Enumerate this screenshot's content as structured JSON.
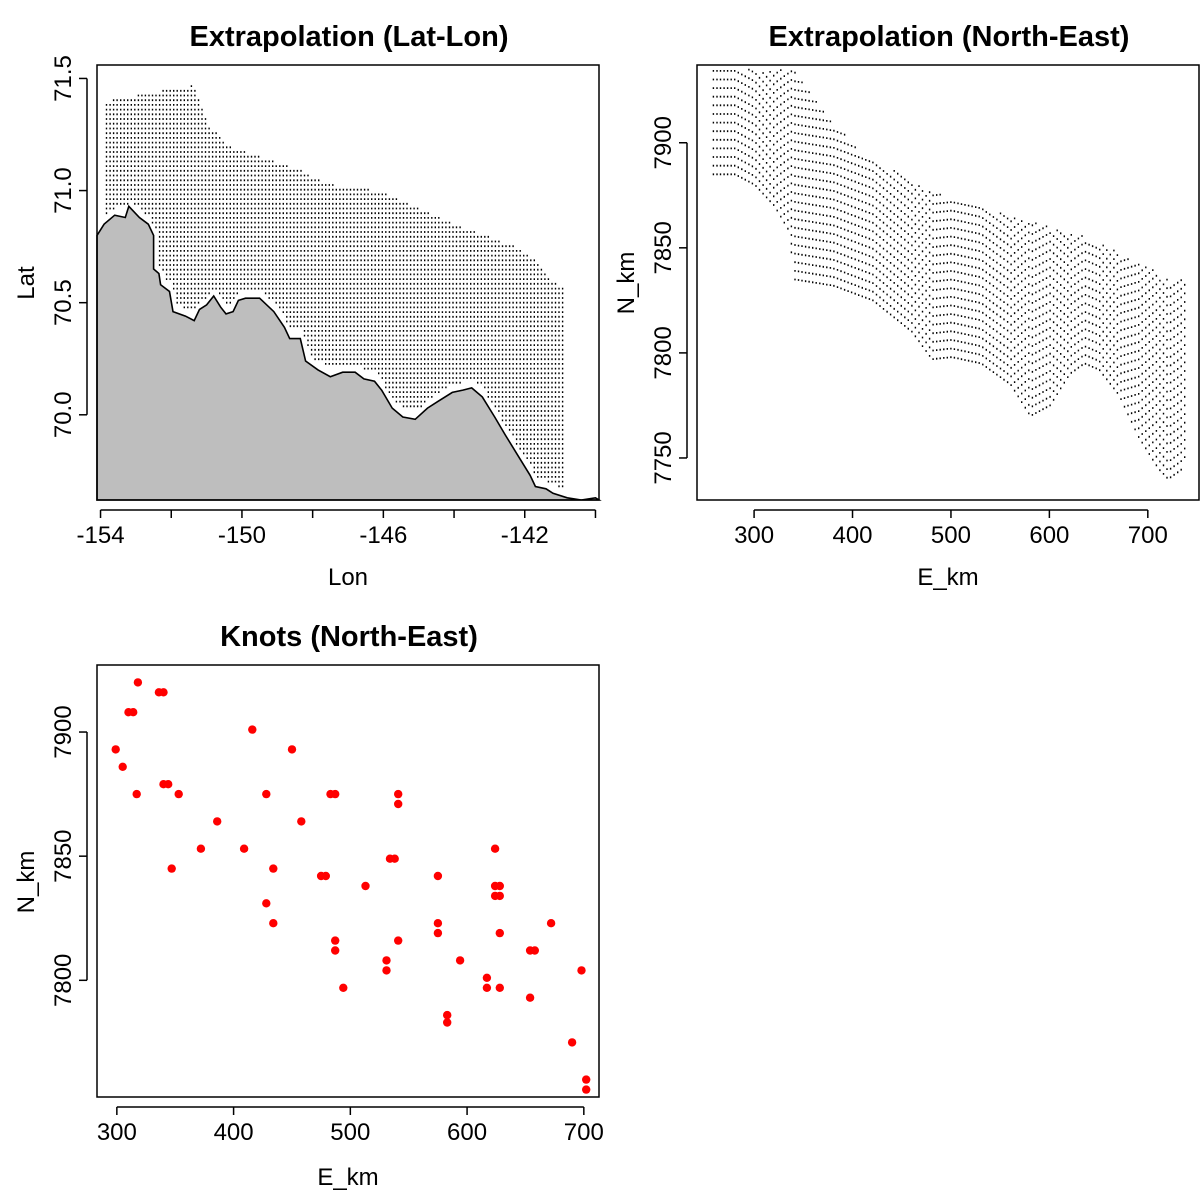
{
  "chart_data": [
    {
      "id": "latlon",
      "type": "scatter",
      "title": "Extrapolation (Lat-Lon)",
      "xlabel": "Lon",
      "ylabel": "Lat",
      "xlim": [
        -154.1,
        -139.9
      ],
      "ylim": [
        69.62,
        71.56
      ],
      "xticks": [
        -154,
        -152,
        -150,
        -148,
        -146,
        -144,
        -142,
        -140
      ],
      "xticklabels": [
        "-154",
        "",
        "-150",
        "",
        "-146",
        "",
        "-142",
        ""
      ],
      "yticks": [
        70.0,
        70.5,
        71.0,
        71.5
      ],
      "yticklabels": [
        "70.0",
        "70.5",
        "71.0",
        "71.5"
      ],
      "grid": false,
      "marker": "small black dots",
      "coastline_fill": "#bebebe",
      "land_polygon": [
        [
          -154.1,
          70.8
        ],
        [
          -153.9,
          70.85
        ],
        [
          -153.6,
          70.89
        ],
        [
          -153.3,
          70.88
        ],
        [
          -153.2,
          70.93
        ],
        [
          -152.9,
          70.88
        ],
        [
          -152.65,
          70.85
        ],
        [
          -152.5,
          70.8
        ],
        [
          -152.5,
          70.65
        ],
        [
          -152.35,
          70.63
        ],
        [
          -152.3,
          70.58
        ],
        [
          -152.05,
          70.55
        ],
        [
          -151.95,
          70.46
        ],
        [
          -151.6,
          70.44
        ],
        [
          -151.35,
          70.42
        ],
        [
          -151.2,
          70.47
        ],
        [
          -151.0,
          70.49
        ],
        [
          -150.8,
          70.53
        ],
        [
          -150.6,
          70.48
        ],
        [
          -150.45,
          70.45
        ],
        [
          -150.25,
          70.46
        ],
        [
          -150.1,
          70.51
        ],
        [
          -149.9,
          70.52
        ],
        [
          -149.5,
          70.52
        ],
        [
          -149.1,
          70.46
        ],
        [
          -148.8,
          70.39
        ],
        [
          -148.65,
          70.34
        ],
        [
          -148.35,
          70.34
        ],
        [
          -148.2,
          70.24
        ],
        [
          -147.85,
          70.2
        ],
        [
          -147.5,
          70.17
        ],
        [
          -147.15,
          70.19
        ],
        [
          -146.8,
          70.19
        ],
        [
          -146.55,
          70.16
        ],
        [
          -146.25,
          70.15
        ],
        [
          -146.05,
          70.11
        ],
        [
          -145.75,
          70.03
        ],
        [
          -145.45,
          69.99
        ],
        [
          -145.1,
          69.98
        ],
        [
          -144.75,
          70.03
        ],
        [
          -144.45,
          70.06
        ],
        [
          -144.05,
          70.1
        ],
        [
          -143.75,
          70.11
        ],
        [
          -143.5,
          70.12
        ],
        [
          -143.2,
          70.08
        ],
        [
          -142.85,
          69.99
        ],
        [
          -142.55,
          69.91
        ],
        [
          -142.2,
          69.82
        ],
        [
          -141.85,
          69.73
        ],
        [
          -141.7,
          69.68
        ],
        [
          -141.4,
          69.67
        ],
        [
          -141.2,
          69.65
        ],
        [
          -140.8,
          69.63
        ],
        [
          -140.4,
          69.62
        ],
        [
          -140.0,
          69.63
        ],
        [
          -139.9,
          69.62
        ],
        [
          -154.1,
          69.62
        ]
      ]
    },
    {
      "id": "ne",
      "type": "scatter",
      "title": "Extrapolation (North-East)",
      "xlabel": "E_km",
      "ylabel": "N_km",
      "xlim": [
        242,
        752
      ],
      "ylim": [
        7730,
        7937
      ],
      "xticks": [
        300,
        400,
        500,
        600,
        700
      ],
      "yticks": [
        7750,
        7800,
        7850,
        7900
      ],
      "grid": false,
      "marker": "small black dots",
      "region_north_boundary": [
        [
          258,
          7935
        ],
        [
          340,
          7935
        ],
        [
          355,
          7925
        ],
        [
          370,
          7915
        ],
        [
          390,
          7905
        ],
        [
          410,
          7895
        ],
        [
          430,
          7890
        ],
        [
          460,
          7882
        ],
        [
          490,
          7875
        ],
        [
          520,
          7870
        ],
        [
          560,
          7866
        ],
        [
          600,
          7860
        ],
        [
          640,
          7855
        ],
        [
          680,
          7845
        ],
        [
          700,
          7842
        ],
        [
          720,
          7835
        ],
        [
          740,
          7835
        ]
      ],
      "region_south_boundary": [
        [
          258,
          7885
        ],
        [
          280,
          7885
        ],
        [
          300,
          7880
        ],
        [
          320,
          7870
        ],
        [
          335,
          7858
        ],
        [
          340,
          7835
        ],
        [
          380,
          7832
        ],
        [
          420,
          7825
        ],
        [
          460,
          7810
        ],
        [
          480,
          7797
        ],
        [
          500,
          7798
        ],
        [
          530,
          7795
        ],
        [
          560,
          7785
        ],
        [
          580,
          7770
        ],
        [
          600,
          7775
        ],
        [
          620,
          7790
        ],
        [
          635,
          7795
        ],
        [
          650,
          7792
        ],
        [
          670,
          7780
        ],
        [
          690,
          7760
        ],
        [
          710,
          7745
        ],
        [
          720,
          7740
        ],
        [
          735,
          7745
        ],
        [
          740,
          7760
        ]
      ]
    },
    {
      "id": "knots",
      "type": "scatter",
      "title": "Knots (North-East)",
      "xlabel": "E_km",
      "ylabel": "N_km",
      "xlim": [
        283,
        713
      ],
      "ylim": [
        7753,
        7927
      ],
      "xticks": [
        300,
        400,
        500,
        600,
        700
      ],
      "yticks": [
        7800,
        7850,
        7900
      ],
      "grid": false,
      "marker_color": "#ff0000",
      "points": [
        [
          299,
          7893
        ],
        [
          305,
          7886
        ],
        [
          310,
          7908
        ],
        [
          314,
          7908
        ],
        [
          317,
          7875
        ],
        [
          318,
          7920
        ],
        [
          336,
          7916
        ],
        [
          340,
          7916
        ],
        [
          340,
          7879
        ],
        [
          344,
          7879
        ],
        [
          347,
          7845
        ],
        [
          353,
          7875
        ],
        [
          372,
          7853
        ],
        [
          386,
          7864
        ],
        [
          409,
          7853
        ],
        [
          416,
          7901
        ],
        [
          428,
          7875
        ],
        [
          428,
          7831
        ],
        [
          434,
          7845
        ],
        [
          434,
          7823
        ],
        [
          450,
          7893
        ],
        [
          458,
          7864
        ],
        [
          475,
          7842
        ],
        [
          479,
          7842
        ],
        [
          483,
          7875
        ],
        [
          487,
          7875
        ],
        [
          487,
          7816
        ],
        [
          487,
          7812
        ],
        [
          494,
          7797
        ],
        [
          513,
          7838
        ],
        [
          531,
          7808
        ],
        [
          531,
          7804
        ],
        [
          534,
          7849
        ],
        [
          538,
          7849
        ],
        [
          541,
          7875
        ],
        [
          541,
          7871
        ],
        [
          541,
          7816
        ],
        [
          575,
          7842
        ],
        [
          575,
          7823
        ],
        [
          575,
          7819
        ],
        [
          583,
          7786
        ],
        [
          583,
          7783
        ],
        [
          594,
          7808
        ],
        [
          617,
          7801
        ],
        [
          617,
          7797
        ],
        [
          624,
          7853
        ],
        [
          624,
          7838
        ],
        [
          624,
          7834
        ],
        [
          628,
          7838
        ],
        [
          628,
          7834
        ],
        [
          628,
          7819
        ],
        [
          628,
          7797
        ],
        [
          654,
          7793
        ],
        [
          654,
          7812
        ],
        [
          658,
          7812
        ],
        [
          672,
          7823
        ],
        [
          690,
          7775
        ],
        [
          698,
          7804
        ],
        [
          702,
          7760
        ],
        [
          702,
          7756
        ]
      ]
    }
  ]
}
